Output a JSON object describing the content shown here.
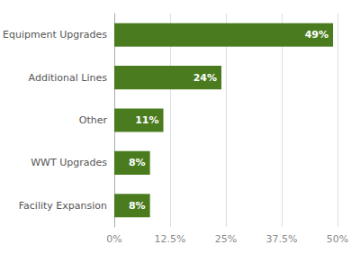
{
  "chart_data": {
    "type": "bar",
    "orientation": "horizontal",
    "categories": [
      "Facility Expansion",
      "WWT Upgrades",
      "Other",
      "Additional Lines",
      "Equipment Upgrades"
    ],
    "values": [
      8,
      8,
      11,
      24,
      49
    ],
    "value_labels": [
      "8%",
      "8%",
      "11%",
      "24%",
      "49%"
    ],
    "data_labels": true,
    "color": "#4a7c1f",
    "xlim": [
      0,
      50
    ],
    "xticks": [
      {
        "value": 0,
        "label": "0%"
      },
      {
        "value": 12.5,
        "label": "12.5%"
      },
      {
        "value": 25,
        "label": "25%"
      },
      {
        "value": 37.5,
        "label": "37.5%"
      },
      {
        "value": 50,
        "label": "50%"
      }
    ],
    "grid": true
  }
}
